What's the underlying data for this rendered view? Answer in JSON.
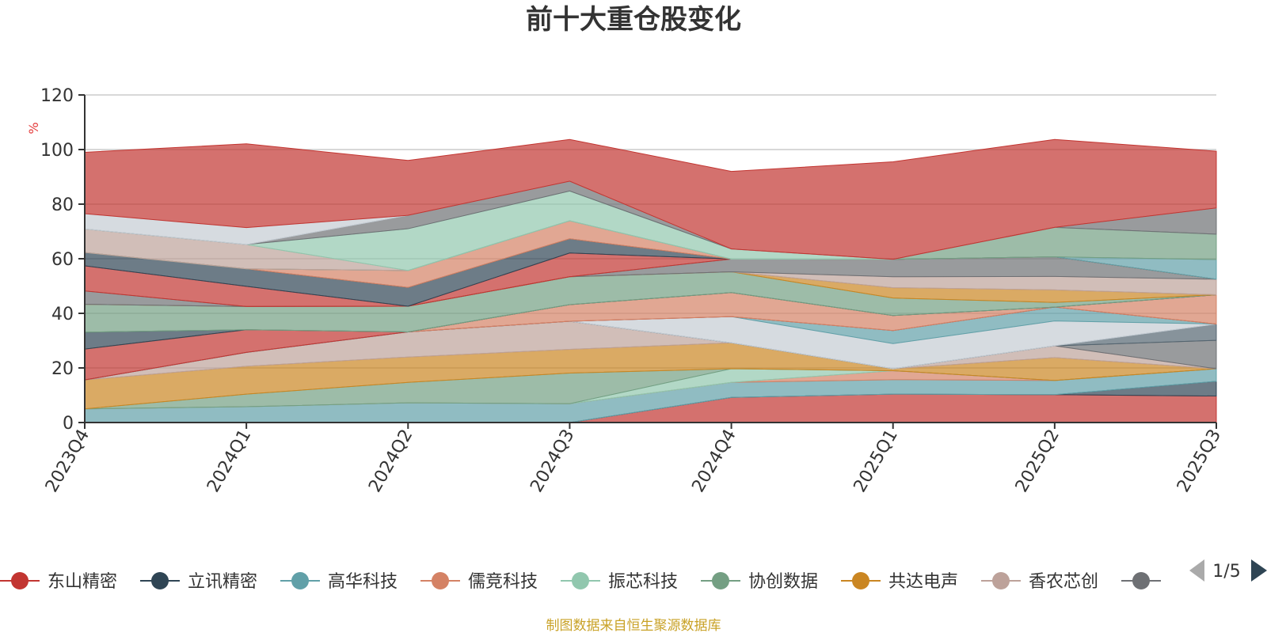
{
  "footer": {
    "source": "制图数据来自恒生聚源数据库"
  },
  "legend": {
    "page_indicator": "1/5"
  },
  "chart_data": {
    "type": "area",
    "stacked": true,
    "title": "前十大重仓股变化",
    "ylabel": "%",
    "ylim": [
      0,
      120
    ],
    "yticks": [
      0,
      20,
      40,
      60,
      80,
      100,
      120
    ],
    "grid": true,
    "legend_position": "bottom",
    "categories": [
      "2023Q4",
      "2024Q1",
      "2024Q2",
      "2024Q3",
      "2024Q4",
      "2025Q1",
      "2025Q2",
      "2025Q3"
    ],
    "series": [
      {
        "name": "东山精密",
        "color": "#c23531",
        "legend": true,
        "values": [
          0,
          0,
          0,
          0,
          9.2,
          10.4,
          10.2,
          9.7
        ]
      },
      {
        "name": "立讯精密",
        "color": "#2f4554",
        "legend": true,
        "values": [
          0,
          0,
          0,
          0,
          0,
          0,
          0,
          5.4
        ]
      },
      {
        "name": "高华科技",
        "color": "#61a0a8",
        "legend": true,
        "values": [
          5,
          5.8,
          7.2,
          6.9,
          5.5,
          5.3,
          5.2,
          4.6
        ]
      },
      {
        "name": "儒竞科技",
        "color": "#d48265",
        "legend": true,
        "values": [
          0,
          0,
          0,
          0,
          0,
          3.3,
          0,
          0
        ]
      },
      {
        "name": "振芯科技",
        "color": "#91c7ae",
        "legend": true,
        "values": [
          0,
          0,
          0,
          0,
          5,
          0,
          0,
          0
        ]
      },
      {
        "name": "协创数据",
        "color": "#749f83",
        "legend": true,
        "values": [
          0,
          4.6,
          7.5,
          11.2,
          0,
          0,
          0,
          0
        ]
      },
      {
        "name": "共达电声",
        "color": "#ca8622",
        "legend": true,
        "values": [
          10.6,
          10.2,
          9.3,
          8.7,
          9.5,
          0.7,
          8.4,
          0
        ]
      },
      {
        "name": "香农芯创",
        "color": "#bda29a",
        "legend": true,
        "values": [
          0,
          5.1,
          9.2,
          10.3,
          0,
          0,
          4.3,
          0
        ]
      },
      {
        "name": "",
        "color": "#6e7074",
        "legend": true,
        "values": [
          0,
          0,
          0,
          0,
          0,
          0,
          0,
          10.4
        ]
      },
      {
        "name": "",
        "color": "#546570",
        "legend": false,
        "values": [
          0,
          0,
          0,
          0,
          0,
          0,
          0,
          6
        ]
      },
      {
        "name": "",
        "color": "#c4ccd3",
        "legend": false,
        "values": [
          0,
          0,
          0,
          0,
          9.6,
          9.2,
          9.1,
          0
        ]
      },
      {
        "name": "",
        "color": "#61a0a8",
        "legend": false,
        "values": [
          0,
          0,
          0,
          0,
          0,
          4.8,
          5.1,
          0
        ]
      },
      {
        "name": "",
        "color": "#c23531",
        "legend": false,
        "values": [
          11.3,
          8.3,
          0,
          0,
          0,
          0,
          0,
          0
        ]
      },
      {
        "name": "",
        "color": "#d48265",
        "legend": false,
        "values": [
          0,
          0,
          0,
          6.1,
          8.8,
          5.5,
          0,
          10.7
        ]
      },
      {
        "name": "",
        "color": "#2f4554",
        "legend": false,
        "values": [
          6.2,
          0,
          0,
          0,
          0,
          0,
          0,
          0
        ]
      },
      {
        "name": "",
        "color": "#749f83",
        "legend": false,
        "values": [
          10.2,
          8.5,
          9.4,
          10.2,
          7.6,
          6.4,
          1.7,
          0
        ]
      },
      {
        "name": "",
        "color": "#ca8622",
        "legend": false,
        "values": [
          0,
          0,
          0,
          0,
          0,
          3.8,
          4.6,
          0
        ]
      },
      {
        "name": "",
        "color": "#bda29a",
        "legend": false,
        "values": [
          0,
          0,
          0,
          0,
          0,
          4,
          4.9,
          5.7
        ]
      },
      {
        "name": "",
        "color": "#6e7074",
        "legend": false,
        "values": [
          4.9,
          0,
          0,
          0,
          4.7,
          6.4,
          7.2,
          0
        ]
      },
      {
        "name": "",
        "color": "#c23531",
        "legend": false,
        "values": [
          9.2,
          7.4,
          0,
          8.7,
          0,
          0,
          0,
          0
        ]
      },
      {
        "name": "",
        "color": "#2f4554",
        "legend": false,
        "values": [
          4.9,
          6.4,
          6.9,
          5.2,
          0,
          0,
          0,
          0
        ]
      },
      {
        "name": "",
        "color": "#d48265",
        "legend": false,
        "values": [
          0,
          0,
          6.2,
          6.6,
          0,
          0,
          0,
          0
        ]
      },
      {
        "name": "",
        "color": "#61a0a8",
        "legend": false,
        "values": [
          0,
          0,
          0,
          0,
          0,
          0,
          0,
          7.2
        ]
      },
      {
        "name": "",
        "color": "#749f83",
        "legend": false,
        "values": [
          0,
          0,
          0,
          0,
          0,
          0,
          10.8,
          9.3
        ]
      },
      {
        "name": "",
        "color": "#bda29a",
        "legend": false,
        "values": [
          8.6,
          8.9,
          0,
          0,
          0,
          0,
          0,
          0
        ]
      },
      {
        "name": "",
        "color": "#91c7ae",
        "legend": false,
        "values": [
          0,
          0,
          15.3,
          10.9,
          3.7,
          0,
          0,
          0
        ]
      },
      {
        "name": "",
        "color": "#6e7074",
        "legend": false,
        "values": [
          0,
          0,
          4.9,
          3.6,
          0,
          0,
          0,
          9.6
        ]
      },
      {
        "name": "",
        "color": "#c4ccd3",
        "legend": false,
        "values": [
          5.6,
          6.2,
          0,
          0,
          0,
          0,
          0,
          0
        ]
      },
      {
        "name": "",
        "color": "#c23531",
        "legend": false,
        "values": [
          22.5,
          30.7,
          20.1,
          15.3,
          28.4,
          35.7,
          32.2,
          20.8
        ]
      }
    ]
  }
}
